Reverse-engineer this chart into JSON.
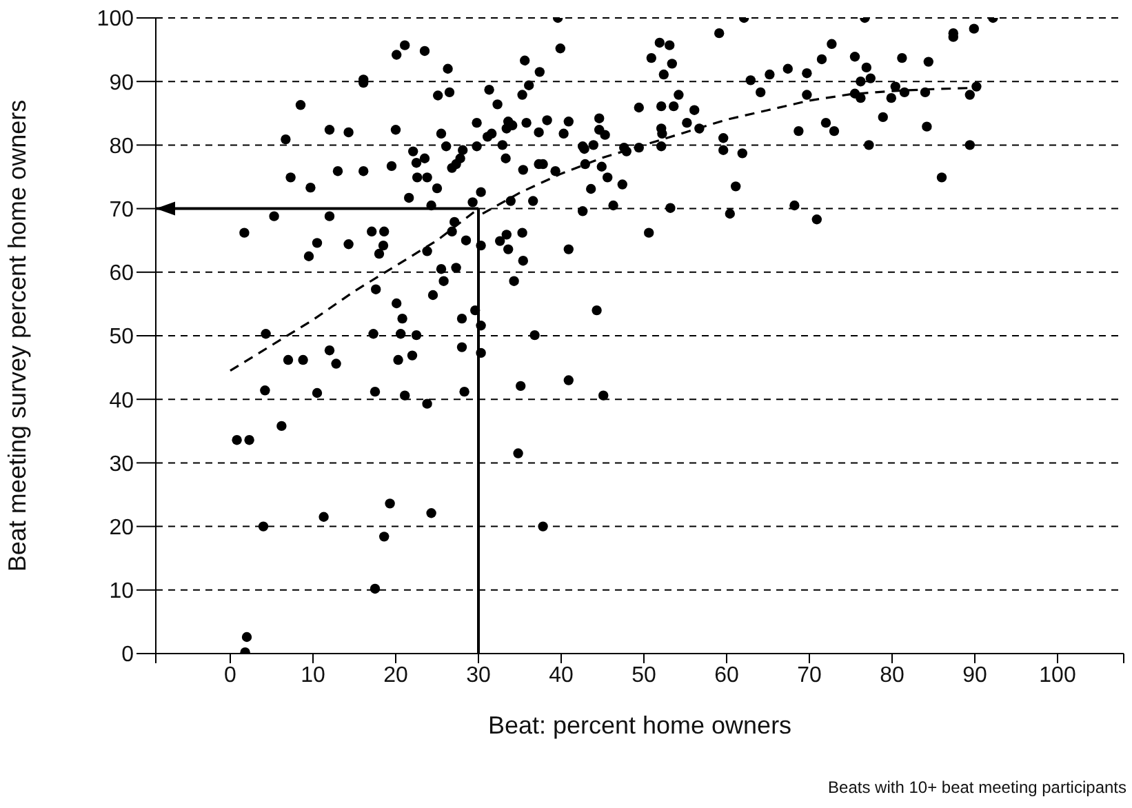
{
  "chart_data": {
    "type": "scatter",
    "xlabel": "Beat: percent home owners",
    "ylabel": "Beat meeting survey percent home owners",
    "annotations": [
      "Beats with 10+ beat meeting participants"
    ],
    "xlim": [
      -9,
      108
    ],
    "xticks": [
      {
        "value": -9,
        "label": null
      },
      0,
      10,
      20,
      30,
      40,
      50,
      60,
      70,
      80,
      90,
      100,
      {
        "value": 108,
        "label": null
      }
    ],
    "ylim": [
      0,
      100
    ],
    "yticks": [
      0,
      10,
      20,
      30,
      40,
      50,
      60,
      70,
      80,
      90,
      100
    ],
    "grid": "y",
    "ref_lines": [
      {
        "axis": "x",
        "value": 30,
        "color": "#000000"
      },
      {
        "axis": "y",
        "value": 70,
        "color": "#000000"
      }
    ],
    "series": [
      {
        "color": "#000000",
        "marker": "circle",
        "x": [
          21.1,
          20.1,
          23.5,
          26.3,
          16.1,
          16.1,
          25.1,
          26.5,
          8.5,
          29.8,
          6.7,
          12.0,
          14.3,
          20.0,
          25.5,
          26.1,
          28.1,
          29.8,
          22.1,
          23.5,
          22.5,
          27.8,
          27.3,
          26.8,
          7.3,
          9.7,
          13.0,
          16.1,
          19.5,
          22.6,
          23.8,
          25.0,
          30.3,
          21.6,
          24.3,
          29.3,
          1.7,
          5.3,
          12.0,
          17.1,
          18.6,
          10.5,
          14.3,
          18.5,
          18.0,
          9.5,
          23.8,
          27.1,
          26.8,
          28.5,
          30.3,
          25.5,
          27.3,
          25.8,
          24.5,
          17.6,
          20.1,
          20.8,
          28.0,
          29.6,
          4.3,
          17.3,
          20.6,
          22.5,
          7.0,
          8.8,
          12.0,
          12.8,
          20.3,
          22.0,
          28.0,
          30.3,
          4.2,
          10.5,
          17.5,
          21.1,
          23.8,
          28.3,
          0.8,
          2.3,
          6.2,
          4.0,
          11.3,
          19.3,
          18.6,
          24.3,
          17.5,
          2.0,
          1.8,
          36.8,
          35.1,
          40.9,
          45.1,
          34.8,
          37.8,
          39.6,
          39.9,
          35.6,
          37.4,
          31.3,
          36.1,
          35.3,
          32.3,
          33.6,
          33.4,
          34.1,
          35.8,
          38.3,
          31.6,
          31.1,
          32.9,
          33.3,
          37.3,
          40.3,
          40.9,
          44.6,
          44.6,
          45.3,
          42.6,
          42.8,
          43.9,
          35.4,
          37.3,
          37.8,
          39.3,
          42.9,
          44.9,
          45.6,
          43.6,
          47.4,
          47.6,
          47.9,
          49.4,
          49.4,
          46.3,
          42.6,
          36.6,
          33.9,
          33.4,
          32.6,
          33.6,
          35.3,
          35.4,
          34.3,
          40.9,
          30.3,
          44.3,
          50.6,
          53.2,
          50.9,
          51.9,
          53.1,
          53.4,
          52.4,
          54.2,
          52.1,
          53.6,
          56.1,
          52.1,
          52.2,
          52.1,
          55.2,
          56.7,
          59.1,
          62.1,
          59.6,
          59.6,
          61.9,
          61.1,
          60.4,
          62.9,
          64.1,
          65.2,
          67.4,
          68.7,
          68.2,
          69.7,
          71.5,
          72.7,
          76.7,
          69.7,
          72.0,
          73.0,
          75.5,
          76.9,
          76.2,
          77.4,
          75.5,
          76.2,
          78.9,
          77.2,
          70.9,
          80.4,
          81.5,
          79.9,
          81.2,
          84.4,
          84.0,
          84.2,
          86.0,
          87.4,
          87.4,
          89.9,
          92.2,
          89.4,
          90.2,
          89.4
        ],
        "values": [
          95.7,
          94.2,
          94.8,
          92.0,
          90.3,
          89.8,
          87.8,
          88.3,
          86.3,
          83.5,
          80.9,
          82.4,
          82.0,
          82.4,
          81.8,
          79.8,
          79.2,
          79.8,
          79.0,
          77.9,
          77.2,
          77.9,
          77.0,
          76.4,
          74.9,
          73.3,
          75.9,
          75.9,
          76.7,
          74.9,
          74.9,
          73.2,
          72.6,
          71.7,
          70.5,
          71.0,
          66.2,
          68.8,
          68.8,
          66.4,
          66.4,
          64.6,
          64.4,
          64.2,
          62.9,
          62.5,
          63.3,
          67.9,
          66.4,
          65.0,
          64.2,
          60.5,
          60.7,
          58.6,
          56.4,
          57.3,
          55.1,
          52.7,
          52.7,
          54.0,
          50.3,
          50.3,
          50.3,
          50.1,
          46.2,
          46.2,
          47.7,
          45.6,
          46.2,
          46.9,
          48.2,
          47.3,
          41.4,
          41.0,
          41.2,
          40.6,
          39.3,
          41.2,
          33.6,
          33.6,
          35.8,
          20.0,
          21.5,
          23.6,
          18.4,
          22.1,
          10.2,
          2.6,
          0.2,
          50.1,
          42.1,
          43.0,
          40.6,
          31.5,
          20.0,
          100,
          95.2,
          93.3,
          91.5,
          88.7,
          89.4,
          87.9,
          86.4,
          83.7,
          82.6,
          83.1,
          83.5,
          83.9,
          81.8,
          81.3,
          80.0,
          77.9,
          82.0,
          81.8,
          83.7,
          84.2,
          82.4,
          81.6,
          79.8,
          79.4,
          80.0,
          76.1,
          77.0,
          77.0,
          75.9,
          77.0,
          76.6,
          74.9,
          73.1,
          73.8,
          79.6,
          79.0,
          79.6,
          85.9,
          70.5,
          69.6,
          71.2,
          71.2,
          65.9,
          64.9,
          63.6,
          66.2,
          61.8,
          58.6,
          63.6,
          51.6,
          54.0,
          66.2,
          70.1,
          93.7,
          96.1,
          95.7,
          92.8,
          91.1,
          87.9,
          86.1,
          86.1,
          85.5,
          82.6,
          81.8,
          79.8,
          83.5,
          82.6,
          97.6,
          100,
          81.1,
          79.2,
          78.7,
          73.5,
          69.2,
          90.2,
          88.3,
          91.1,
          92.0,
          82.2,
          70.5,
          91.3,
          93.5,
          95.9,
          100,
          87.9,
          83.5,
          82.2,
          93.9,
          92.2,
          90.0,
          90.5,
          88.1,
          87.4,
          84.4,
          80.0,
          68.3,
          89.2,
          88.3,
          87.4,
          93.7,
          93.1,
          88.3,
          82.9,
          74.9,
          97.6,
          97.0,
          98.3,
          100,
          87.9,
          89.2,
          80.0
        ]
      },
      {
        "type": "line",
        "color": "#000000",
        "line_style": "dashed",
        "marker": "none",
        "x": [
          0,
          5,
          10,
          15,
          20,
          25,
          29.5
        ],
        "values": [
          44.5,
          48.5,
          52.5,
          57,
          61,
          65,
          69.5
        ]
      },
      {
        "type": "line",
        "color": "#000000",
        "line_style": "dashed",
        "marker": "none",
        "x": [
          30.5,
          35,
          40,
          45,
          50,
          55,
          60,
          65,
          70,
          75,
          80,
          85,
          90
        ],
        "values": [
          69.2,
          72.5,
          75.5,
          78,
          80,
          82,
          84,
          85.5,
          87,
          88,
          88.5,
          88.8,
          89
        ]
      }
    ]
  }
}
